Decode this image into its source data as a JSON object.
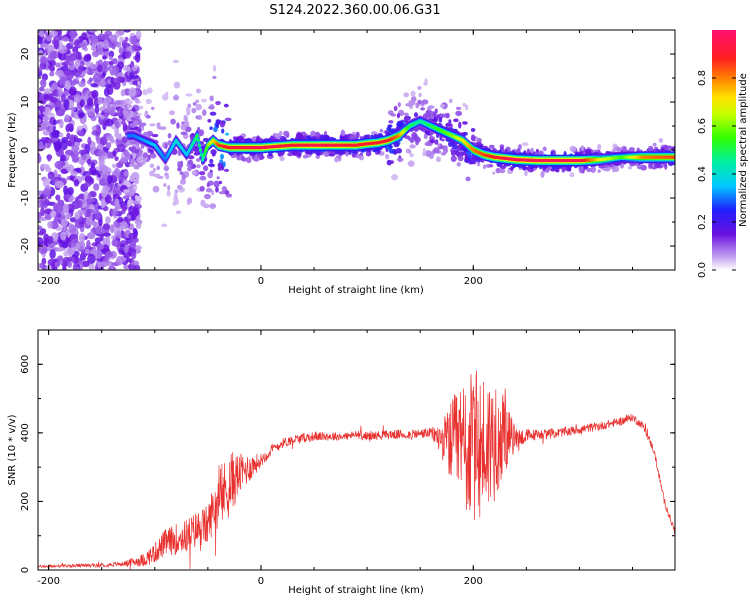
{
  "title": "S124.2022.360.00.06.G31",
  "colors": {
    "snr_line": "#e8312f",
    "spectrum_max": "#e8185c",
    "spectrum_min": "#ffffff"
  },
  "chart_data": [
    {
      "type": "heatmap",
      "name": "spectrogram",
      "xlabel": "Height of straight line (km)",
      "ylabel": "Frequency (Hz)",
      "xlim": [
        -210,
        390
      ],
      "ylim": [
        -25,
        25
      ],
      "xticks": [
        -200,
        0,
        200
      ],
      "xtick_labels": [
        "-200",
        "0",
        "200"
      ],
      "yticks": [
        -20,
        -10,
        0,
        10,
        20
      ],
      "ytick_labels": [
        "-20",
        "-10",
        "0",
        "10",
        "20"
      ],
      "grid": false,
      "colorbar": {
        "label": "Normalized spectral amplitude",
        "range": [
          0,
          1
        ],
        "ticks": [
          0.0,
          0.2,
          0.4,
          0.6,
          0.8
        ],
        "tick_labels": [
          "0.0",
          "0.2",
          "0.4",
          "0.6",
          "0.8"
        ],
        "colormap": "white-purple-blue-cyan-green-yellow-orange-red-magenta"
      },
      "ridge": {
        "x": [
          -120,
          -100,
          -90,
          -80,
          -70,
          -60,
          -55,
          -50,
          -45,
          -40,
          -30,
          0,
          30,
          60,
          90,
          100,
          110,
          120,
          130,
          140,
          150,
          160,
          170,
          180,
          190,
          200,
          210,
          220,
          240,
          260,
          300,
          320,
          340,
          360,
          390
        ],
        "y": [
          3,
          1,
          -2,
          2,
          -1,
          3,
          -2,
          1,
          2,
          1,
          0.5,
          0.5,
          1,
          1,
          1,
          1.3,
          1.5,
          2,
          3,
          5,
          6,
          5,
          4,
          3,
          2,
          0,
          -1,
          -1.5,
          -2,
          -2.2,
          -2.2,
          -2,
          -1.5,
          -1.5,
          -1.5
        ],
        "amplitude": [
          0.3,
          0.35,
          0.3,
          0.4,
          0.35,
          0.5,
          0.45,
          0.6,
          0.7,
          0.85,
          0.9,
          0.95,
          0.9,
          0.95,
          0.9,
          0.9,
          0.9,
          0.9,
          0.8,
          0.5,
          0.45,
          0.5,
          0.55,
          0.6,
          0.7,
          0.8,
          0.85,
          0.9,
          0.95,
          0.95,
          0.95,
          0.7,
          0.55,
          0.8,
          0.85
        ]
      }
    },
    {
      "type": "line",
      "name": "snr",
      "xlabel": "Height of straight line (km)",
      "ylabel": "SNR (10 * v/v)",
      "xlim": [
        -210,
        390
      ],
      "ylim": [
        0,
        700
      ],
      "xticks": [
        -200,
        0,
        200
      ],
      "xtick_labels": [
        "-200",
        "0",
        "200"
      ],
      "yticks": [
        0,
        200,
        400,
        600
      ],
      "ytick_labels": [
        "0",
        "200",
        "400",
        "600"
      ],
      "grid": false,
      "x": [
        -210,
        -180,
        -150,
        -130,
        -110,
        -100,
        -90,
        -80,
        -70,
        -60,
        -50,
        -45,
        -40,
        -30,
        -20,
        -10,
        0,
        10,
        20,
        30,
        40,
        50,
        60,
        80,
        90,
        100,
        120,
        140,
        160,
        170,
        180,
        190,
        200,
        210,
        220,
        230,
        240,
        250,
        260,
        280,
        300,
        320,
        340,
        350,
        360,
        370,
        380,
        390
      ],
      "y": [
        10,
        12,
        14,
        18,
        30,
        50,
        80,
        90,
        100,
        120,
        130,
        180,
        200,
        250,
        280,
        300,
        320,
        350,
        370,
        380,
        385,
        390,
        390,
        390,
        395,
        390,
        395,
        395,
        400,
        380,
        370,
        360,
        355,
        360,
        380,
        390,
        385,
        390,
        395,
        400,
        410,
        420,
        435,
        445,
        420,
        350,
        200,
        110
      ],
      "noise_envelope": {
        "x": [
          -210,
          -130,
          -110,
          -90,
          -70,
          -50,
          -40,
          -30,
          -20,
          0,
          20,
          80,
          160,
          170,
          180,
          190,
          200,
          210,
          220,
          230,
          240,
          260,
          390
        ],
        "amp": [
          4,
          6,
          20,
          40,
          50,
          60,
          80,
          100,
          60,
          20,
          15,
          12,
          15,
          50,
          130,
          200,
          230,
          220,
          180,
          110,
          30,
          15,
          10
        ]
      }
    }
  ]
}
